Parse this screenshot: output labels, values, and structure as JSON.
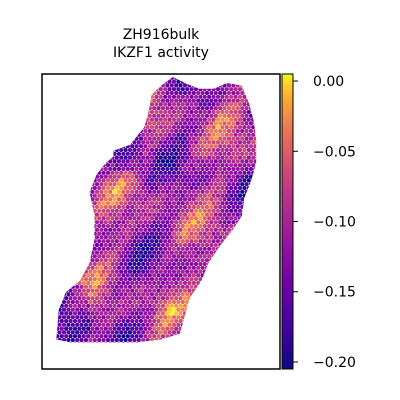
{
  "chart_data": {
    "type": "heatmap",
    "title_lines": [
      "ZH916bulk",
      "IKZF1 activity"
    ],
    "xlabel": "",
    "ylabel": "",
    "grid": false,
    "axis_ticks_visible": false,
    "colormap": "plasma",
    "color_range": [
      -0.205,
      0.005
    ],
    "colorbar": {
      "placement": "right",
      "ticks": [
        0.0,
        -0.05,
        -0.1,
        -0.15,
        -0.2
      ],
      "tick_labels": [
        "0.00",
        "−0.05",
        "−0.10",
        "−0.15",
        "−0.20"
      ]
    },
    "tissue_region": {
      "x": [
        0.84,
        0.87,
        0.89,
        0.9,
        0.9,
        0.88,
        0.85,
        0.84,
        0.8,
        0.75,
        0.7,
        0.67,
        0.62,
        0.6,
        0.58,
        0.5,
        0.4,
        0.3,
        0.2,
        0.12,
        0.06,
        0.07,
        0.1,
        0.16,
        0.2,
        0.22,
        0.22,
        0.2,
        0.23,
        0.27,
        0.3,
        0.3,
        0.37,
        0.43,
        0.45,
        0.46,
        0.5,
        0.55,
        0.6,
        0.66,
        0.72,
        0.78,
        0.84
      ],
      "y": [
        0.96,
        0.9,
        0.84,
        0.78,
        0.7,
        0.64,
        0.58,
        0.52,
        0.47,
        0.42,
        0.36,
        0.3,
        0.24,
        0.18,
        0.12,
        0.1,
        0.09,
        0.09,
        0.09,
        0.09,
        0.1,
        0.2,
        0.26,
        0.3,
        0.36,
        0.44,
        0.52,
        0.6,
        0.66,
        0.7,
        0.72,
        0.74,
        0.76,
        0.82,
        0.88,
        0.93,
        0.96,
        0.99,
        0.97,
        0.95,
        0.95,
        0.97,
        0.96
      ],
      "mean_value": -0.11
    }
  }
}
